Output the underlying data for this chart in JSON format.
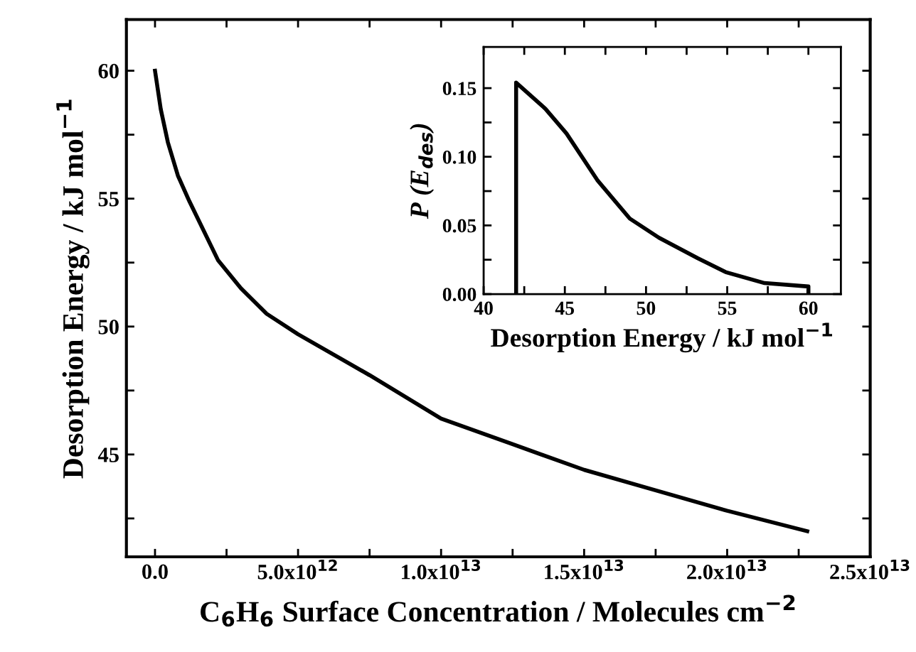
{
  "chart_data": [
    {
      "type": "line",
      "xlabel": "C$_{6}$H$_{6}$ Surface Concentration / Molecules cm$^{−2}$",
      "ylabel": "Desorption Energy / kJ mol$^{−1}$",
      "series": [
        {
          "color": "#000000",
          "x": [
            0,
            200000000000.0,
            450000000000.0,
            800000000000.0,
            1200000000000.0,
            2200000000000.0,
            3000000000000.0,
            3900000000000.0,
            5000000000000.0,
            7500000000000.0,
            10000000000000.0,
            12500000000000.0,
            15000000000000.0,
            17500000000000.0,
            20000000000000.0,
            22800000000000.0
          ],
          "values": [
            60,
            58.5,
            57.2,
            55.9,
            54.9,
            52.6,
            51.5,
            50.5,
            49.7,
            48.1,
            46.4,
            45.4,
            44.4,
            43.6,
            42.8,
            42.0
          ]
        }
      ],
      "xlim": [
        -1000000000000.0,
        25000000000000.0
      ],
      "ylim": [
        41,
        62
      ],
      "xticks": [
        {
          "value": 0,
          "label": "0.0"
        },
        {
          "value": 2500000000000.0,
          "label": null
        },
        {
          "value": 5000000000000.0,
          "label": "5.0x10$^{12}$"
        },
        {
          "value": 7500000000000.0,
          "label": null
        },
        {
          "value": 10000000000000.0,
          "label": "1.0x10$^{13}$"
        },
        {
          "value": 12500000000000.0,
          "label": null
        },
        {
          "value": 15000000000000.0,
          "label": "1.5x10$^{13}$"
        },
        {
          "value": 17500000000000.0,
          "label": null
        },
        {
          "value": 20000000000000.0,
          "label": "2.0x10$^{13}$"
        },
        {
          "value": 22500000000000.0,
          "label": null
        },
        {
          "value": 25000000000000.0,
          "label": "2.5x10$^{13}$"
        }
      ],
      "yticks": [
        {
          "value": 42.5,
          "label": null
        },
        45,
        {
          "value": 47.5,
          "label": null
        },
        50,
        {
          "value": 52.5,
          "label": null
        },
        55,
        {
          "value": 57.5,
          "label": null
        },
        60
      ],
      "grid": false,
      "legend": false,
      "marker": "none",
      "line_style": "solid"
    },
    {
      "type": "line",
      "xlabel": "Desorption Energy / kJ mol$^{−1}$",
      "ylabel": "P (E$_{des}$)",
      "series": [
        {
          "color": "#000000",
          "x": [
            42,
            42,
            43.8,
            45.1,
            47.0,
            49.0,
            50.8,
            53.2,
            54.9,
            57.3,
            60,
            60
          ],
          "values": [
            0,
            0.154,
            0.135,
            0.117,
            0.083,
            0.055,
            0.041,
            0.026,
            0.016,
            0.008,
            0.0055,
            0
          ]
        }
      ],
      "xlim": [
        40,
        62
      ],
      "ylim": [
        0,
        0.18
      ],
      "xticks": [
        40,
        {
          "value": 42.5,
          "label": null
        },
        45,
        {
          "value": 47.5,
          "label": null
        },
        50,
        {
          "value": 52.5,
          "label": null
        },
        55,
        {
          "value": 57.5,
          "label": null
        },
        60
      ],
      "yticks": [
        {
          "value": 0,
          "label": "0.00"
        },
        {
          "value": 0.025,
          "label": null
        },
        {
          "value": 0.05,
          "label": "0.05"
        },
        {
          "value": 0.075,
          "label": null
        },
        {
          "value": 0.1,
          "label": "0.10"
        },
        {
          "value": 0.125,
          "label": null
        },
        {
          "value": 0.15,
          "label": "0.15"
        }
      ],
      "grid": false,
      "legend": false,
      "marker": "none",
      "line_style": "solid"
    }
  ]
}
